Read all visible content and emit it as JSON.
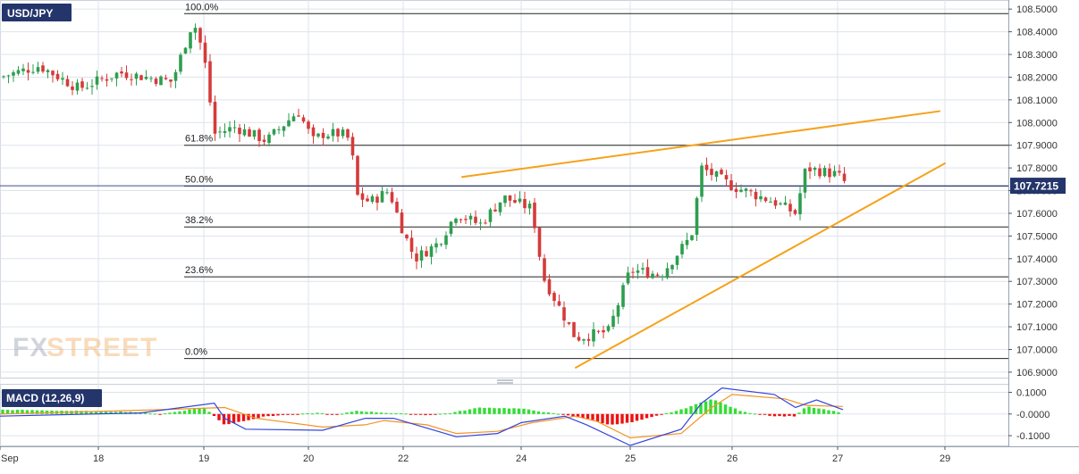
{
  "symbol": "USD/JPY",
  "watermark": {
    "part1": "FX",
    "part2": "STREET"
  },
  "colors": {
    "up": "#2e9e4f",
    "down": "#d63a3a",
    "fib": "#222222",
    "trend": "#f5a21b",
    "price_tag_bg": "#24356b",
    "macd_line": "#3344dd",
    "signal_line": "#f39323",
    "hist_pos": "#33dd33",
    "hist_neg": "#ee1111",
    "grid": "#dde3ec"
  },
  "chart_data": [
    {
      "type": "candlestick",
      "title": "USD/JPY",
      "y_range": [
        106.88,
        108.54
      ],
      "y_ticks": [
        "106.9000",
        "107.0000",
        "107.1000",
        "107.2000",
        "107.3000",
        "107.4000",
        "107.5000",
        "107.6000",
        "107.7000",
        "107.8000",
        "107.9000",
        "108.0000",
        "108.1000",
        "108.2000",
        "108.3000",
        "108.4000",
        "108.5000"
      ],
      "last_price": "107.7215",
      "x_ticks": [
        "Sep",
        "18",
        "19",
        "20",
        "22",
        "24",
        "25",
        "26",
        "27",
        "29"
      ],
      "fibonacci_levels": [
        {
          "label": "100.0%",
          "price": 108.48
        },
        {
          "label": "61.8%",
          "price": 107.9
        },
        {
          "label": "50.0%",
          "price": 107.72
        },
        {
          "label": "38.2%",
          "price": 107.54
        },
        {
          "label": "23.6%",
          "price": 107.32
        },
        {
          "label": "0.0%",
          "price": 106.96
        }
      ],
      "trendlines": [
        {
          "name": "upper",
          "from": [
            "23",
            107.76
          ],
          "to": [
            "28.9",
            108.05
          ]
        },
        {
          "name": "lower",
          "from": [
            "24.5",
            106.92
          ],
          "to": [
            "29",
            107.82
          ]
        }
      ],
      "path": [
        [
          "Sep",
          108.2
        ],
        [
          "17.4",
          108.25
        ],
        [
          "17.8",
          108.15
        ],
        [
          "18.2",
          108.22
        ],
        [
          "18.7",
          108.18
        ],
        [
          "18.9",
          108.45
        ],
        [
          "19.0",
          108.3
        ],
        [
          "19.1",
          107.95
        ],
        [
          "19.3",
          107.98
        ],
        [
          "19.6",
          107.92
        ],
        [
          "19.9",
          108.05
        ],
        [
          "20.1",
          107.92
        ],
        [
          "20.3",
          107.95
        ],
        [
          "20.7",
          107.95
        ],
        [
          "20.9",
          107.92
        ],
        [
          "21.0",
          107.68
        ],
        [
          "21.3",
          107.65
        ],
        [
          "21.7",
          107.7
        ],
        [
          "22.0",
          107.52
        ],
        [
          "22.2",
          107.4
        ],
        [
          "22.6",
          107.47
        ],
        [
          "22.9",
          107.6
        ],
        [
          "23.3",
          107.55
        ],
        [
          "23.7",
          107.67
        ],
        [
          "24.1",
          107.62
        ],
        [
          "24.2",
          107.32
        ],
        [
          "24.5",
          107.05
        ],
        [
          "24.8",
          107.08
        ],
        [
          "25.0",
          107.35
        ],
        [
          "25.3",
          107.33
        ],
        [
          "25.6",
          107.5
        ],
        [
          "25.7",
          107.8
        ],
        [
          "26.0",
          107.72
        ],
        [
          "26.4",
          107.65
        ],
        [
          "26.6",
          107.6
        ],
        [
          "26.7",
          107.8
        ],
        [
          "27.0",
          107.77
        ],
        [
          "27.2",
          107.72
        ]
      ]
    },
    {
      "type": "macd",
      "title": "MACD (12,26,9)",
      "y_ticks": [
        "0.1000",
        "-0.0000",
        "-0.1000"
      ],
      "y_range": [
        -0.145,
        0.135
      ],
      "macd": [
        [
          "Sep",
          -0.01
        ],
        [
          "18.4",
          0.005
        ],
        [
          "19.1",
          0.05
        ],
        [
          "19.2",
          -0.02
        ],
        [
          "19.4",
          -0.07
        ],
        [
          "20.3",
          -0.075
        ],
        [
          "21.2",
          -0.02
        ],
        [
          "21.8",
          -0.02
        ],
        [
          "22.9",
          -0.105
        ],
        [
          "23.6",
          -0.09
        ],
        [
          "24.0",
          -0.04
        ],
        [
          "24.4",
          -0.01
        ],
        [
          "24.6",
          -0.05
        ],
        [
          "25.0",
          -0.145
        ],
        [
          "25.5",
          -0.07
        ],
        [
          "25.7",
          0.05
        ],
        [
          "25.9",
          0.12
        ],
        [
          "26.4",
          0.09
        ],
        [
          "26.6",
          0.03
        ],
        [
          "26.8",
          0.065
        ],
        [
          "27.1",
          0.02
        ]
      ],
      "signal": [
        [
          "Sep",
          0.0
        ],
        [
          "18.6",
          0.02
        ],
        [
          "19.2",
          0.03
        ],
        [
          "19.5",
          -0.02
        ],
        [
          "20.3",
          -0.06
        ],
        [
          "21.2",
          -0.05
        ],
        [
          "21.6",
          -0.03
        ],
        [
          "22.4",
          -0.05
        ],
        [
          "22.9",
          -0.09
        ],
        [
          "23.6",
          -0.08
        ],
        [
          "24.1",
          -0.04
        ],
        [
          "24.5",
          -0.01
        ],
        [
          "24.7",
          -0.035
        ],
        [
          "25.0",
          -0.11
        ],
        [
          "25.5",
          -0.09
        ],
        [
          "25.8",
          0.03
        ],
        [
          "26.0",
          0.09
        ],
        [
          "26.5",
          0.07
        ],
        [
          "26.7",
          0.04
        ],
        [
          "27.1",
          0.035
        ]
      ],
      "histogram": [
        [
          "Sep",
          0.02
        ],
        [
          "18.3",
          0.01
        ],
        [
          "18.6",
          0.0
        ],
        [
          "19.0",
          0.03
        ],
        [
          "19.2",
          -0.05
        ],
        [
          "19.6",
          -0.01
        ],
        [
          "20.2",
          0.005
        ],
        [
          "20.6",
          -0.005
        ],
        [
          "21.0",
          0.015
        ],
        [
          "21.3",
          0.01
        ],
        [
          "22.4",
          -0.005
        ],
        [
          "22.8",
          0.005
        ],
        [
          "23.1",
          0.02
        ],
        [
          "23.3",
          0.03
        ],
        [
          "24.0",
          0.025
        ],
        [
          "24.6",
          -0.02
        ],
        [
          "24.8",
          -0.05
        ],
        [
          "25.0",
          -0.04
        ],
        [
          "25.5",
          0.02
        ],
        [
          "25.8",
          0.07
        ],
        [
          "26.1",
          0.01
        ],
        [
          "26.4",
          -0.01
        ],
        [
          "26.6",
          -0.01
        ],
        [
          "26.7",
          0.035
        ],
        [
          "27.0",
          0.01
        ],
        [
          "27.2",
          -0.008
        ]
      ]
    }
  ]
}
